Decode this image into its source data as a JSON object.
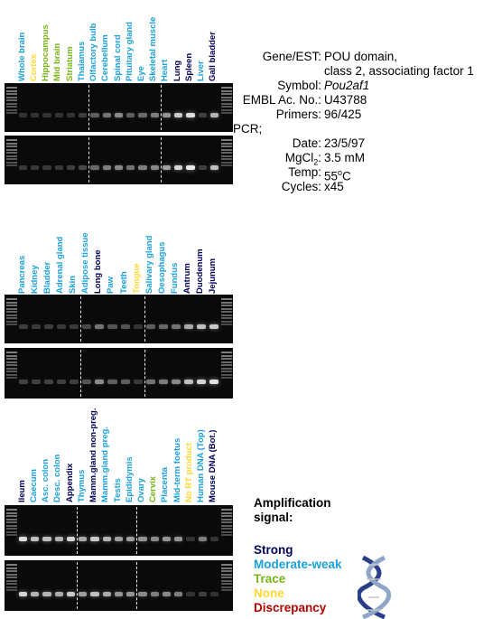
{
  "colors": {
    "strong": "#00005a",
    "moderate": "#1aa0dc",
    "trace": "#78b414",
    "none": "#ffd732",
    "discrepancy": "#b40000"
  },
  "gene_info": {
    "rows": [
      {
        "key": "Gene/EST:",
        "value": "POU domain,"
      },
      {
        "key": "",
        "value": "class 2, associating factor 1"
      },
      {
        "key": "Symbol:",
        "value": "Pou2af1",
        "italic": true
      },
      {
        "key": "EMBL Ac. No.:",
        "value": "U43788"
      },
      {
        "key": "Primers:",
        "value": "96/425"
      },
      {
        "key": "PCR;",
        "value": "",
        "left": true
      },
      {
        "key": "Date:",
        "value": "23/5/97"
      },
      {
        "key": "MgCl2:",
        "value": "3.5 mM",
        "sub": "2"
      },
      {
        "key": "Temp:",
        "value": "55oC",
        "sup": true
      },
      {
        "key": "Cycles:",
        "value": "x45"
      }
    ]
  },
  "panels": [
    {
      "lanes": [
        {
          "label": "Whole brain",
          "level": "moderate"
        },
        {
          "label": "Cortex",
          "level": "none"
        },
        {
          "label": "Hippocampus",
          "level": "trace"
        },
        {
          "label": "Mid brain",
          "level": "trace"
        },
        {
          "label": "Striatum",
          "level": "trace"
        },
        {
          "label": "Thalamus",
          "level": "moderate"
        },
        {
          "label": "Olfactory bulb",
          "level": "moderate"
        },
        {
          "label": "Cerebellum",
          "level": "moderate"
        },
        {
          "label": "Spinal cord",
          "level": "moderate"
        },
        {
          "label": "Pituitary gland",
          "level": "moderate"
        },
        {
          "label": "Eye",
          "level": "moderate"
        },
        {
          "label": "Skeletal muscle",
          "level": "moderate"
        },
        {
          "label": "Heart",
          "level": "moderate"
        },
        {
          "label": "Lung",
          "level": "strong"
        },
        {
          "label": "Spleen",
          "level": "strong"
        },
        {
          "label": "Liver",
          "level": "moderate"
        },
        {
          "label": "Gall bladder",
          "level": "strong"
        }
      ],
      "gel1": [
        0.05,
        0.05,
        0.05,
        0.05,
        0.05,
        0.1,
        0.25,
        0.35,
        0.45,
        0.25,
        0.3,
        0.4,
        0.5,
        0.75,
        0.85,
        0.1,
        0.65
      ],
      "gel2": [
        0.08,
        0.08,
        0.08,
        0.08,
        0.1,
        0.15,
        0.3,
        0.4,
        0.45,
        0.35,
        0.4,
        0.45,
        0.55,
        0.8,
        0.9,
        0.1,
        0.7
      ]
    },
    {
      "lanes": [
        {
          "label": "Pancreas",
          "level": "moderate"
        },
        {
          "label": "Kidney",
          "level": "moderate"
        },
        {
          "label": "Bladder",
          "level": "moderate"
        },
        {
          "label": "Adrenal gland",
          "level": "moderate"
        },
        {
          "label": "Skin",
          "level": "moderate"
        },
        {
          "label": "Adipose tissue",
          "level": "moderate"
        },
        {
          "label": "Long bone",
          "level": "strong"
        },
        {
          "label": "Paw",
          "level": "moderate"
        },
        {
          "label": "Teeth",
          "level": "moderate"
        },
        {
          "label": "Tongue",
          "level": "none"
        },
        {
          "label": "Salivary gland",
          "level": "moderate"
        },
        {
          "label": "Oesophagus",
          "level": "moderate"
        },
        {
          "label": "Fundus",
          "level": "moderate"
        },
        {
          "label": "Antrum",
          "level": "strong"
        },
        {
          "label": "Duodenum",
          "level": "strong"
        },
        {
          "label": "Jejunum",
          "level": "strong"
        }
      ],
      "gel1": [
        0.1,
        0.08,
        0.1,
        0.08,
        0.08,
        0.15,
        0.35,
        0.2,
        0.2,
        0.05,
        0.25,
        0.3,
        0.35,
        0.6,
        0.7,
        0.75
      ],
      "gel2": [
        0.12,
        0.1,
        0.12,
        0.1,
        0.1,
        0.2,
        0.45,
        0.25,
        0.25,
        0.08,
        0.35,
        0.4,
        0.45,
        0.7,
        0.8,
        0.85
      ]
    },
    {
      "lanes": [
        {
          "label": "Ileum",
          "level": "strong"
        },
        {
          "label": "Caecum",
          "level": "moderate"
        },
        {
          "label": "Asc. colon",
          "level": "moderate"
        },
        {
          "label": "Desc. colon",
          "level": "moderate"
        },
        {
          "label": "Appendix",
          "level": "strong"
        },
        {
          "label": "Thymus",
          "level": "moderate"
        },
        {
          "label": "Mamm.gland non-preg.",
          "level": "strong"
        },
        {
          "label": "Mamm.gland preg.",
          "level": "moderate"
        },
        {
          "label": "Testis",
          "level": "moderate"
        },
        {
          "label": "Epididymis",
          "level": "moderate"
        },
        {
          "label": "Ovary",
          "level": "moderate"
        },
        {
          "label": "Cervix",
          "level": "trace"
        },
        {
          "label": "Placenta",
          "level": "moderate"
        },
        {
          "label": "Mid-term foetus",
          "level": "moderate"
        },
        {
          "label": "No RT product",
          "level": "none"
        },
        {
          "label": "Human DNA (Top)",
          "level": "moderate"
        },
        {
          "label": "Mouse DNA (Bot.)",
          "level": "strong"
        }
      ],
      "gel1": [
        0.85,
        0.7,
        0.7,
        0.65,
        0.8,
        0.6,
        0.75,
        0.65,
        0.55,
        0.55,
        0.5,
        0.45,
        0.5,
        0.5,
        0.05,
        0.4,
        0.05
      ],
      "gel2": [
        0.8,
        0.65,
        0.65,
        0.6,
        0.75,
        0.55,
        0.7,
        0.6,
        0.5,
        0.5,
        0.45,
        0.4,
        0.45,
        0.4,
        0.05,
        0.1,
        0.05
      ]
    }
  ],
  "legend": {
    "title": "Amplification signal:",
    "items": [
      {
        "label": "Strong",
        "level": "strong"
      },
      {
        "label": "Moderate-weak",
        "level": "moderate"
      },
      {
        "label": "Trace",
        "level": "trace"
      },
      {
        "label": "None",
        "level": "none"
      },
      {
        "label": "Discrepancy",
        "level": "discrepancy"
      }
    ]
  }
}
